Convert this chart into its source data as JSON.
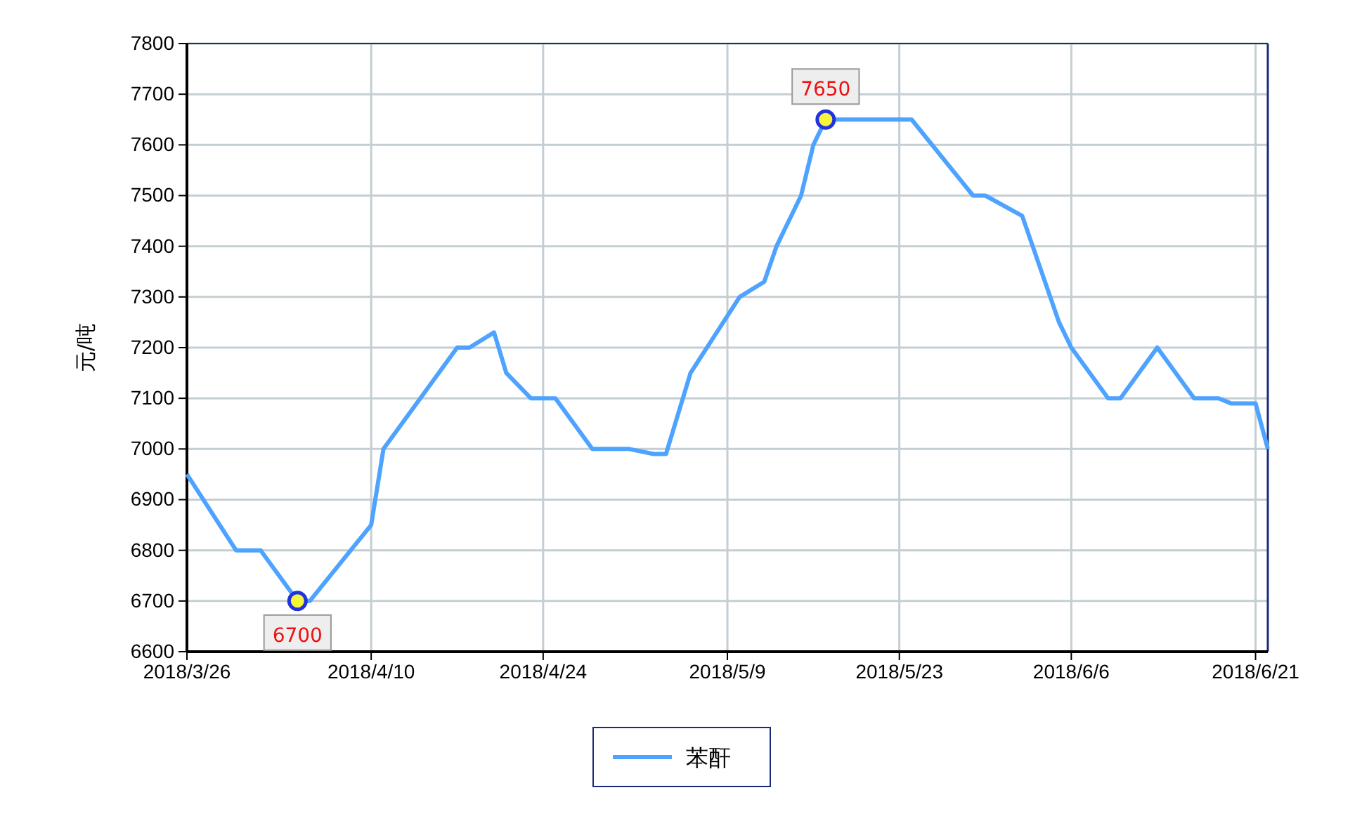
{
  "chart_data": {
    "type": "line",
    "ylabel": "元/吨",
    "xlim": [
      "2018-03-26",
      "2018-06-22"
    ],
    "xticks": [
      {
        "value": "2018-03-26",
        "label": "2018/3/26"
      },
      {
        "value": "2018-04-10",
        "label": "2018/4/10"
      },
      {
        "value": "2018-04-24",
        "label": "2018/4/24"
      },
      {
        "value": "2018-05-09",
        "label": "2018/5/9"
      },
      {
        "value": "2018-05-23",
        "label": "2018/5/23"
      },
      {
        "value": "2018-06-06",
        "label": "2018/6/6"
      },
      {
        "value": "2018-06-21",
        "label": "2018/6/21"
      }
    ],
    "ylim": [
      6600,
      7800
    ],
    "yticks": [
      6600,
      6700,
      6800,
      6900,
      7000,
      7100,
      7200,
      7300,
      7400,
      7500,
      7600,
      7700,
      7800
    ],
    "grid": true,
    "legend": "bottom",
    "x": [
      "2018-03-26",
      "2018-03-30",
      "2018-04-01",
      "2018-04-04",
      "2018-04-05",
      "2018-04-10",
      "2018-04-11",
      "2018-04-14",
      "2018-04-17",
      "2018-04-18",
      "2018-04-20",
      "2018-04-21",
      "2018-04-23",
      "2018-04-25",
      "2018-04-28",
      "2018-05-01",
      "2018-05-03",
      "2018-05-04",
      "2018-05-06",
      "2018-05-10",
      "2018-05-12",
      "2018-05-13",
      "2018-05-15",
      "2018-05-16",
      "2018-05-17",
      "2018-05-24",
      "2018-05-29",
      "2018-05-30",
      "2018-06-02",
      "2018-06-05",
      "2018-06-06",
      "2018-06-09",
      "2018-06-10",
      "2018-06-13",
      "2018-06-16",
      "2018-06-18",
      "2018-06-19",
      "2018-06-21",
      "2018-06-22"
    ],
    "series": [
      {
        "name": "苯酐",
        "color": "#4da3ff",
        "values": [
          6950,
          6800,
          6800,
          6700,
          6700,
          6850,
          7000,
          7100,
          7200,
          7200,
          7230,
          7150,
          7100,
          7100,
          7000,
          7000,
          6990,
          6990,
          7150,
          7300,
          7330,
          7400,
          7500,
          7600,
          7650,
          7650,
          7500,
          7500,
          7460,
          7250,
          7200,
          7100,
          7100,
          7200,
          7100,
          7100,
          7090,
          7090,
          7000
        ]
      }
    ],
    "annotations": [
      {
        "text": "6700",
        "x": "2018-04-04",
        "y": 6700
      },
      {
        "text": "7650",
        "x": "2018-05-17",
        "y": 7650
      }
    ]
  }
}
